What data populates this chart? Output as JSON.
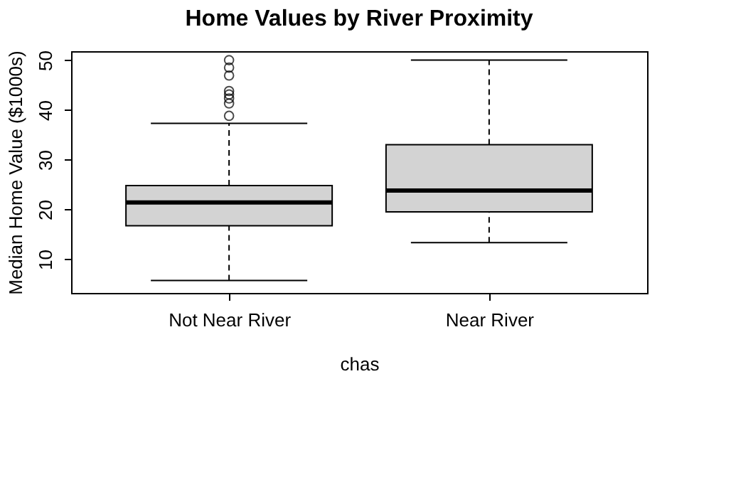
{
  "chart_data": {
    "type": "box",
    "title": "Home Values by River Proximity",
    "xlabel": "chas",
    "ylabel": "Median Home Value ($1000s)",
    "categories": [
      "Not Near River",
      "Near River"
    ],
    "boxes": [
      {
        "low": 5.7,
        "q1": 16.7,
        "median": 21.4,
        "q3": 24.8,
        "high": 37.3,
        "outliers": [
          38.8,
          41.3,
          42.3,
          43.1,
          43.8,
          46.9,
          48.5,
          50
        ]
      },
      {
        "low": 13.3,
        "q1": 19.5,
        "median": 23.8,
        "q3": 33.0,
        "high": 50
      }
    ],
    "color": "#d3d3d3",
    "ylim": [
      3.2,
      51.8
    ],
    "yticks": [
      10,
      20,
      30,
      40,
      50
    ],
    "grid": false
  }
}
